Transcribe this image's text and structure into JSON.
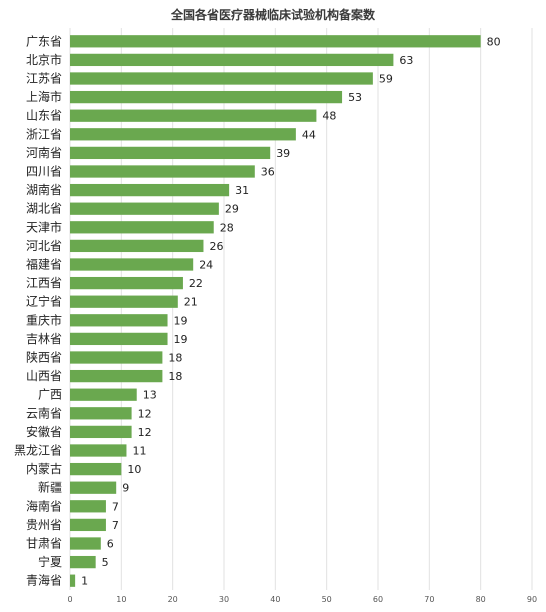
{
  "chart_data": {
    "type": "bar",
    "orientation": "horizontal",
    "title": "全国各省医疗器械临床试验机构备案数",
    "xlabel": "",
    "ylabel": "",
    "xlim": [
      0,
      90
    ],
    "xticks": [
      0,
      10,
      20,
      30,
      40,
      50,
      60,
      70,
      80,
      90
    ],
    "grid": true,
    "legend": "none",
    "bar_color": "#6aa84f",
    "categories": [
      "广东省",
      "北京市",
      "江苏省",
      "上海市",
      "山东省",
      "浙江省",
      "河南省",
      "四川省",
      "湖南省",
      "湖北省",
      "天津市",
      "河北省",
      "福建省",
      "江西省",
      "辽宁省",
      "重庆市",
      "吉林省",
      "陕西省",
      "山西省",
      "广西",
      "云南省",
      "安徽省",
      "黑龙江省",
      "内蒙古",
      "新疆",
      "海南省",
      "贵州省",
      "甘肃省",
      "宁夏",
      "青海省"
    ],
    "values": [
      80,
      63,
      59,
      53,
      48,
      44,
      39,
      36,
      31,
      29,
      28,
      26,
      24,
      22,
      21,
      19,
      19,
      18,
      18,
      13,
      12,
      12,
      11,
      10,
      9,
      7,
      7,
      6,
      5,
      1
    ]
  }
}
